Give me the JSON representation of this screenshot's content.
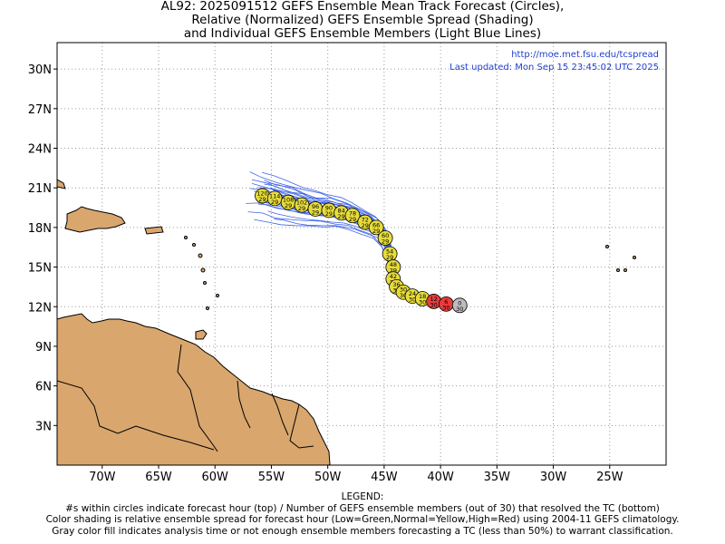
{
  "title": {
    "line1": "AL92: 2025091512 GEFS Ensemble Mean Track Forecast (Circles),",
    "line2": "Relative (Normalized) GEFS Ensemble Spread (Shading)",
    "line3": "and Individual GEFS Ensemble Members (Light Blue Lines)"
  },
  "info": {
    "url": "http://moe.met.fsu.edu/tcspread",
    "updated": "Last updated: Mon Sep 15 23:45:02 UTC 2025"
  },
  "map": {
    "lon_range": [
      -74,
      -20
    ],
    "lat_range": [
      0,
      32
    ],
    "lon_ticks": [
      {
        "value": -70,
        "label": "70W"
      },
      {
        "value": -65,
        "label": "65W"
      },
      {
        "value": -60,
        "label": "60W"
      },
      {
        "value": -55,
        "label": "55W"
      },
      {
        "value": -50,
        "label": "50W"
      },
      {
        "value": -45,
        "label": "45W"
      },
      {
        "value": -40,
        "label": "40W"
      },
      {
        "value": -35,
        "label": "35W"
      },
      {
        "value": -30,
        "label": "30W"
      },
      {
        "value": -25,
        "label": "25W"
      }
    ],
    "lat_ticks": [
      {
        "value": 3,
        "label": "3N"
      },
      {
        "value": 6,
        "label": "6N"
      },
      {
        "value": 9,
        "label": "9N"
      },
      {
        "value": 12,
        "label": "12N"
      },
      {
        "value": 15,
        "label": "15N"
      },
      {
        "value": 18,
        "label": "18N"
      },
      {
        "value": 21,
        "label": "21N"
      },
      {
        "value": 24,
        "label": "24N"
      },
      {
        "value": 27,
        "label": "27N"
      },
      {
        "value": 30,
        "label": "30N"
      }
    ],
    "grid": "dotted",
    "land_color": "#d9a66e",
    "member_color": "#3f63e6",
    "spread_colors": {
      "low": "#3cc83c",
      "normal": "#e6dc3c",
      "high": "#e63c3c",
      "gray": "#bdbdbd"
    }
  },
  "track": [
    {
      "hour": "0",
      "members": "30",
      "lon": -38.3,
      "lat": 12.1,
      "spread": "gray"
    },
    {
      "hour": "6",
      "members": "30",
      "lon": -39.5,
      "lat": 12.2,
      "spread": "high"
    },
    {
      "hour": "12",
      "members": "30",
      "lon": -40.6,
      "lat": 12.4,
      "spread": "high"
    },
    {
      "hour": "18",
      "members": "30",
      "lon": -41.6,
      "lat": 12.6,
      "spread": "normal"
    },
    {
      "hour": "24",
      "members": "30",
      "lon": -42.5,
      "lat": 12.8,
      "spread": "normal"
    },
    {
      "hour": "30",
      "members": "30",
      "lon": -43.3,
      "lat": 13.1,
      "spread": "normal"
    },
    {
      "hour": "36",
      "members": "30",
      "lon": -43.9,
      "lat": 13.5,
      "spread": "normal"
    },
    {
      "hour": "42",
      "members": "30",
      "lon": -44.2,
      "lat": 14.1,
      "spread": "normal"
    },
    {
      "hour": "48",
      "members": "29",
      "lon": -44.2,
      "lat": 15.0,
      "spread": "normal"
    },
    {
      "hour": "54",
      "members": "29",
      "lon": -44.5,
      "lat": 16.0,
      "spread": "normal"
    },
    {
      "hour": "60",
      "members": "29",
      "lon": -44.9,
      "lat": 17.2,
      "spread": "normal"
    },
    {
      "hour": "66",
      "members": "29",
      "lon": -45.7,
      "lat": 18.0,
      "spread": "normal"
    },
    {
      "hour": "72",
      "members": "29",
      "lon": -46.7,
      "lat": 18.4,
      "spread": "normal"
    },
    {
      "hour": "78",
      "members": "29",
      "lon": -47.8,
      "lat": 18.9,
      "spread": "normal"
    },
    {
      "hour": "84",
      "members": "29",
      "lon": -48.8,
      "lat": 19.1,
      "spread": "normal"
    },
    {
      "hour": "90",
      "members": "29",
      "lon": -49.9,
      "lat": 19.3,
      "spread": "normal"
    },
    {
      "hour": "96",
      "members": "29",
      "lon": -51.1,
      "lat": 19.4,
      "spread": "normal"
    },
    {
      "hour": "102",
      "members": "29",
      "lon": -52.3,
      "lat": 19.7,
      "spread": "normal"
    },
    {
      "hour": "108",
      "members": "29",
      "lon": -53.5,
      "lat": 19.9,
      "spread": "normal"
    },
    {
      "hour": "114",
      "members": "29",
      "lon": -54.7,
      "lat": 20.2,
      "spread": "normal"
    },
    {
      "hour": "120",
      "members": "29",
      "lon": -55.8,
      "lat": 20.4,
      "spread": "normal"
    }
  ],
  "legend": {
    "heading": "LEGEND:",
    "line1": "#s within circles indicate forecast hour (top) / Number of GEFS ensemble members (out of 30) that resolved the TC (bottom)",
    "line2": "Color shading is relative ensemble spread for forecast hour (Low=Green,Normal=Yellow,High=Red) using 2004-11 GEFS climatology.",
    "line3": "Gray color fill indicates analysis time or not enough ensemble members forecasting a TC (less than 50%) to warrant classification."
  }
}
